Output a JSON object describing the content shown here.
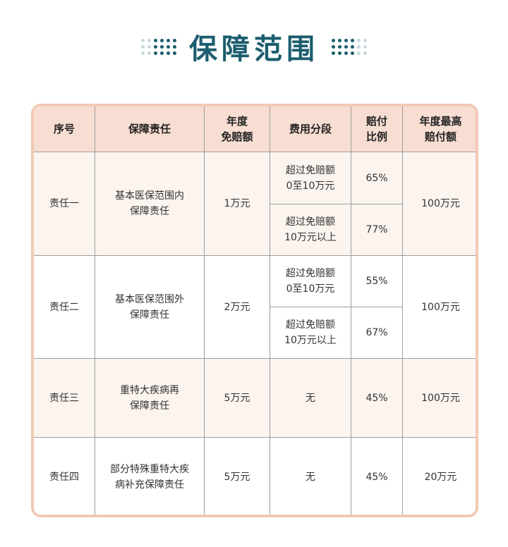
{
  "title": "保障范围",
  "headers": {
    "no": "序号",
    "duty": "保障责任",
    "deductible": "年度\n免赔额",
    "segment": "费用分段",
    "ratio": "赔付\n比例",
    "max": "年度最高\n赔付额"
  },
  "rows": [
    {
      "no": "责任一",
      "duty": "基本医保范围内\n保障责任",
      "deductible": "1万元",
      "segments": [
        {
          "segment": "超过免赔额\n0至10万元",
          "ratio": "65%"
        },
        {
          "segment": "超过免赔额\n10万元以上",
          "ratio": "77%"
        }
      ],
      "max": "100万元"
    },
    {
      "no": "责任二",
      "duty": "基本医保范围外\n保障责任",
      "deductible": "2万元",
      "segments": [
        {
          "segment": "超过免赔额\n0至10万元",
          "ratio": "55%"
        },
        {
          "segment": "超过免赔额\n10万元以上",
          "ratio": "67%"
        }
      ],
      "max": "100万元"
    },
    {
      "no": "责任三",
      "duty": "重特大疾病再\n保障责任",
      "deductible": "5万元",
      "segments": [
        {
          "segment": "无",
          "ratio": "45%"
        }
      ],
      "max": "100万元"
    },
    {
      "no": "责任四",
      "duty": "部分特殊重特大疾\n病补充保障责任",
      "deductible": "5万元",
      "segments": [
        {
          "segment": "无",
          "ratio": "45%"
        }
      ],
      "max": "20万元"
    }
  ]
}
